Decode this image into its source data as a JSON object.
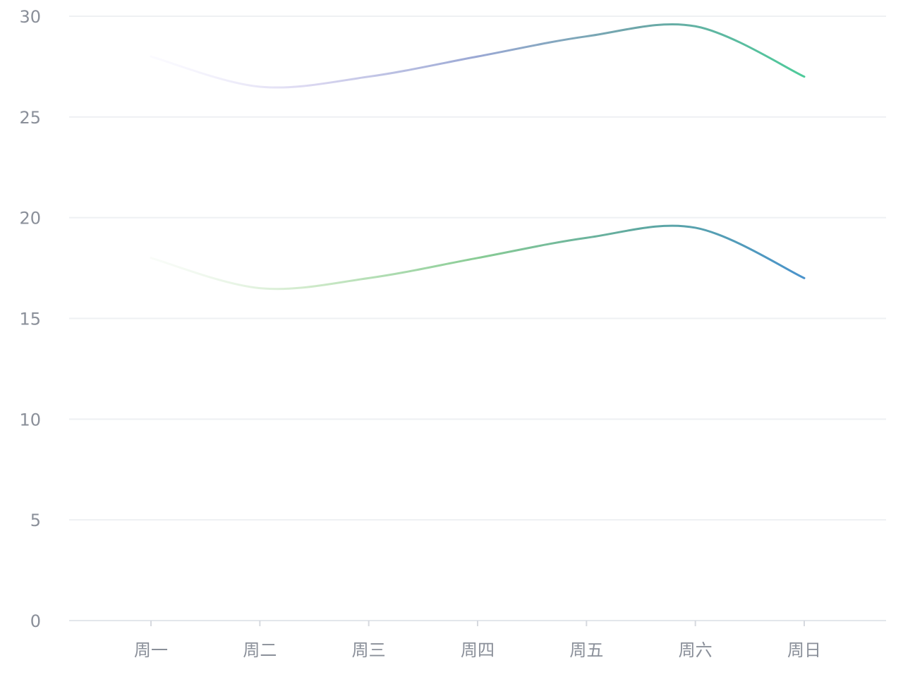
{
  "chart_data": {
    "type": "line",
    "categories": [
      "周一",
      "周二",
      "周三",
      "周四",
      "周五",
      "周六",
      "周日"
    ],
    "series": [
      {
        "values": [
          28,
          26.5,
          27,
          28,
          29,
          29.5,
          27
        ]
      },
      {
        "values": [
          18,
          16.5,
          17,
          18,
          19,
          19.5,
          17
        ]
      }
    ],
    "smooth": true,
    "ylim": [
      0,
      30
    ],
    "yticks": [
      0,
      5,
      10,
      15,
      20,
      25,
      30
    ],
    "grid": true,
    "legend": "none",
    "colors": {
      "series_0_gradient": [
        "#f5f4ff",
        "#d9d6f0",
        "#9aa8d4",
        "#6ca6a8",
        "#4ecb9a"
      ],
      "series_1_gradient": [
        "#f1f8ef",
        "#cde9c8",
        "#89cc95",
        "#5ea8a0",
        "#4a93cc"
      ],
      "grid": "#eef0f3",
      "tick_text": "#8a8f99"
    }
  }
}
